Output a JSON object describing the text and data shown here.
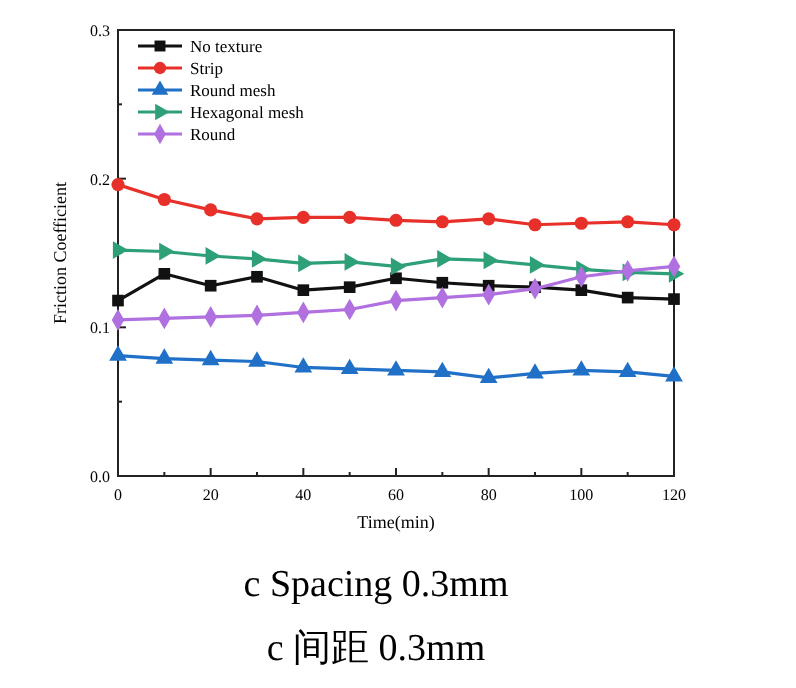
{
  "chart_data": {
    "type": "line",
    "title": "c Spacing 0.3mm",
    "subtitle": "c 间距 0.3mm",
    "xlabel": "Time(min)",
    "ylabel": "Friction Coefficient",
    "x": [
      0,
      10,
      20,
      30,
      40,
      50,
      60,
      70,
      80,
      90,
      100,
      110,
      120
    ],
    "series": [
      {
        "name": "No texture",
        "color": "#111111",
        "marker": "square",
        "values": [
          0.118,
          0.136,
          0.128,
          0.134,
          0.125,
          0.127,
          0.133,
          0.13,
          0.128,
          0.127,
          0.125,
          0.12,
          0.119
        ]
      },
      {
        "name": "Strip",
        "color": "#e8302a",
        "marker": "circle",
        "values": [
          0.196,
          0.186,
          0.179,
          0.173,
          0.174,
          0.174,
          0.172,
          0.171,
          0.173,
          0.169,
          0.17,
          0.171,
          0.169
        ]
      },
      {
        "name": "Round mesh",
        "color": "#2070c8",
        "marker": "triangle",
        "values": [
          0.081,
          0.079,
          0.078,
          0.077,
          0.073,
          0.072,
          0.071,
          0.07,
          0.066,
          0.069,
          0.071,
          0.07,
          0.067
        ]
      },
      {
        "name": "Hexagonal mesh",
        "color": "#2ea078",
        "marker": "triangle-right",
        "values": [
          0.152,
          0.151,
          0.148,
          0.146,
          0.143,
          0.144,
          0.141,
          0.146,
          0.145,
          0.142,
          0.139,
          0.137,
          0.136
        ]
      },
      {
        "name": "Round",
        "color": "#b070e0",
        "marker": "diamond",
        "values": [
          0.105,
          0.106,
          0.107,
          0.108,
          0.11,
          0.112,
          0.118,
          0.12,
          0.122,
          0.126,
          0.134,
          0.138,
          0.141
        ]
      }
    ],
    "xlim": [
      0,
      120
    ],
    "xticks": [
      0,
      {
        "value": 10,
        "label": null
      },
      20,
      {
        "value": 30,
        "label": null
      },
      40,
      {
        "value": 50,
        "label": null
      },
      60,
      {
        "value": 70,
        "label": null
      },
      80,
      {
        "value": 90,
        "label": null
      },
      100,
      {
        "value": 110,
        "label": null
      },
      120
    ],
    "ylim": [
      0,
      0.3
    ],
    "yticks": [
      {
        "value": 0,
        "label": "0.0"
      },
      {
        "value": 0.05,
        "label": null
      },
      0.1,
      {
        "value": 0.15,
        "label": null
      },
      0.2,
      {
        "value": 0.25,
        "label": null
      },
      0.3
    ],
    "grid": false,
    "legend": "top left",
    "line_style": "solid"
  }
}
